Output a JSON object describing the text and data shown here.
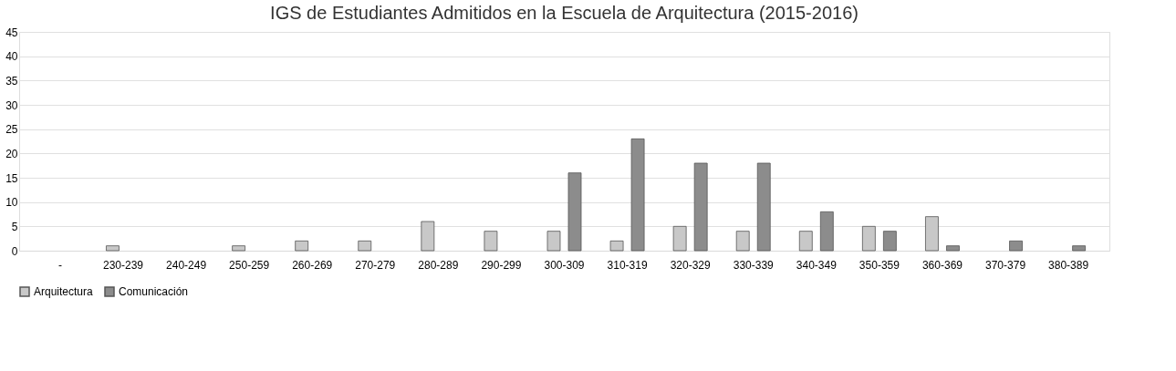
{
  "chart_data": {
    "type": "bar",
    "title": "IGS de Estudiantes Admitidos en la Escuela de Arquitectura (2015-2016)",
    "categories": [
      "-",
      "230-239",
      "240-249",
      "250-259",
      "260-269",
      "270-279",
      "280-289",
      "290-299",
      "300-309",
      "310-319",
      "320-329",
      "330-339",
      "340-349",
      "350-359",
      "360-369",
      "370-379",
      "380-389"
    ],
    "series": [
      {
        "name": "Arquitectura",
        "color": "#c8c8c8",
        "values": [
          null,
          1,
          null,
          1,
          2,
          2,
          6,
          4,
          4,
          2,
          5,
          4,
          4,
          5,
          7,
          null,
          null
        ]
      },
      {
        "name": "Comunicación",
        "color": "#8c8c8c",
        "values": [
          null,
          null,
          null,
          null,
          null,
          null,
          null,
          null,
          16,
          23,
          18,
          18,
          8,
          4,
          1,
          2,
          1
        ]
      }
    ],
    "ylim": [
      0,
      45
    ],
    "yticks": [
      0,
      5,
      10,
      15,
      20,
      25,
      30,
      35,
      40,
      45
    ],
    "grid": "y",
    "legend": "bottom"
  }
}
